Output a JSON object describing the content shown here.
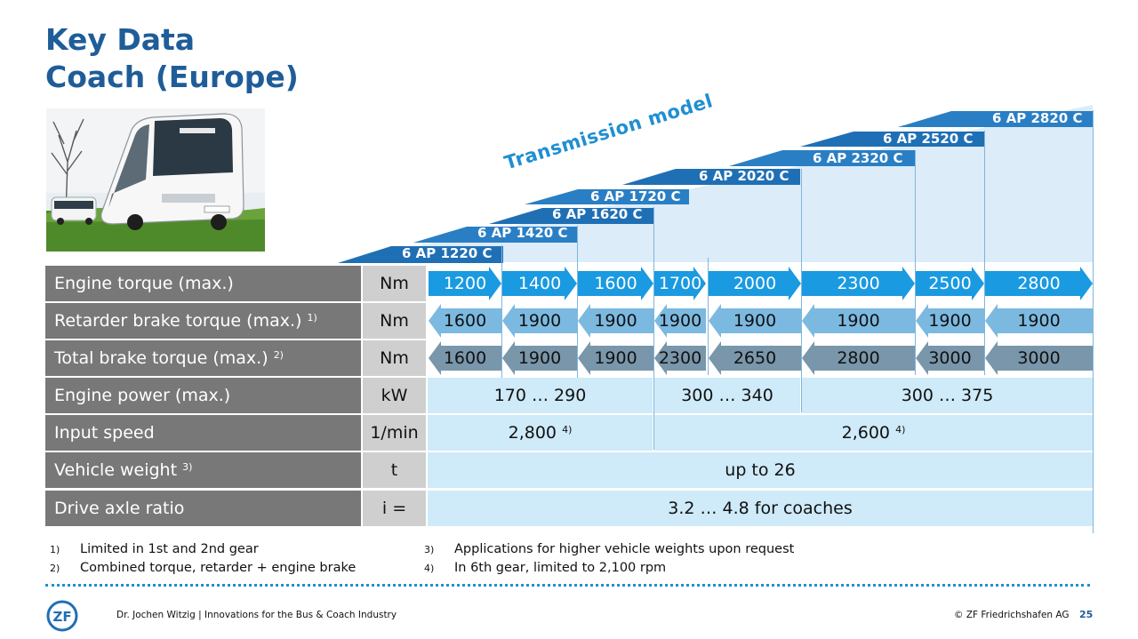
{
  "title": {
    "line1": "Key Data",
    "line2": "Coach (Europe)"
  },
  "transmission_label": "Transmission model",
  "models": [
    "6 AP 1220 C",
    "6 AP 1420 C",
    "6 AP 1620 C",
    "6 AP 1720 C",
    "6 AP 2020 C",
    "6 AP 2320 C",
    "6 AP 2520 C",
    "6 AP 2820 C"
  ],
  "rows": {
    "engine_torque": {
      "label": "Engine torque (max.)",
      "unit": "Nm",
      "values": [
        "1200",
        "1400",
        "1600",
        "1700",
        "2000",
        "2300",
        "2500",
        "2800"
      ]
    },
    "retarder": {
      "label": "Retarder brake torque (max.)",
      "sup": "1)",
      "unit": "Nm",
      "values": [
        "1600",
        "1900",
        "1900",
        "1900",
        "1900",
        "1900",
        "1900",
        "1900"
      ]
    },
    "total_brake": {
      "label": "Total brake torque (max.)",
      "sup": "2)",
      "unit": "Nm",
      "values": [
        "1600",
        "1900",
        "1900",
        "2300",
        "2650",
        "2800",
        "3000",
        "3000"
      ]
    },
    "engine_power": {
      "label": "Engine power (max.)",
      "unit": "kW",
      "values": [
        "170 … 290",
        "300 … 340",
        "300 … 375"
      ]
    },
    "input_speed": {
      "label": "Input speed",
      "unit": "1/min",
      "values": [
        "2,800",
        "2,600"
      ],
      "sup": "4)"
    },
    "vehicle_weight": {
      "label": "Vehicle weight",
      "sup": "3)",
      "unit": "t",
      "value": "up to 26"
    },
    "drive_axle": {
      "label": "Drive axle ratio",
      "unit": "i =",
      "value": "3.2 … 4.8 for coaches"
    }
  },
  "footnotes": [
    {
      "num": "1)",
      "text": "Limited in 1st and 2nd gear"
    },
    {
      "num": "2)",
      "text": "Combined torque, retarder + engine brake"
    },
    {
      "num": "3)",
      "text": "Applications for higher vehicle weights upon request"
    },
    {
      "num": "4)",
      "text": "In 6th gear, limited to 2,100 rpm"
    }
  ],
  "footer": {
    "author": "Dr. Jochen Witzig | Innovations for the Bus & Coach Industry",
    "copyright": "© ZF Friedrichshafen AG",
    "page": "25",
    "logo_text": "ZF"
  },
  "colors": {
    "title": "#1f5d98",
    "accent": "#1f8fd1",
    "engine_arrow": "#1a9ae0",
    "retarder_arrow": "#7cb9e0",
    "total_arrow": "#7996ab",
    "cell_bg": "#cfeaf8",
    "label_bg": "#787878",
    "unit_bg": "#cfcfcf"
  }
}
